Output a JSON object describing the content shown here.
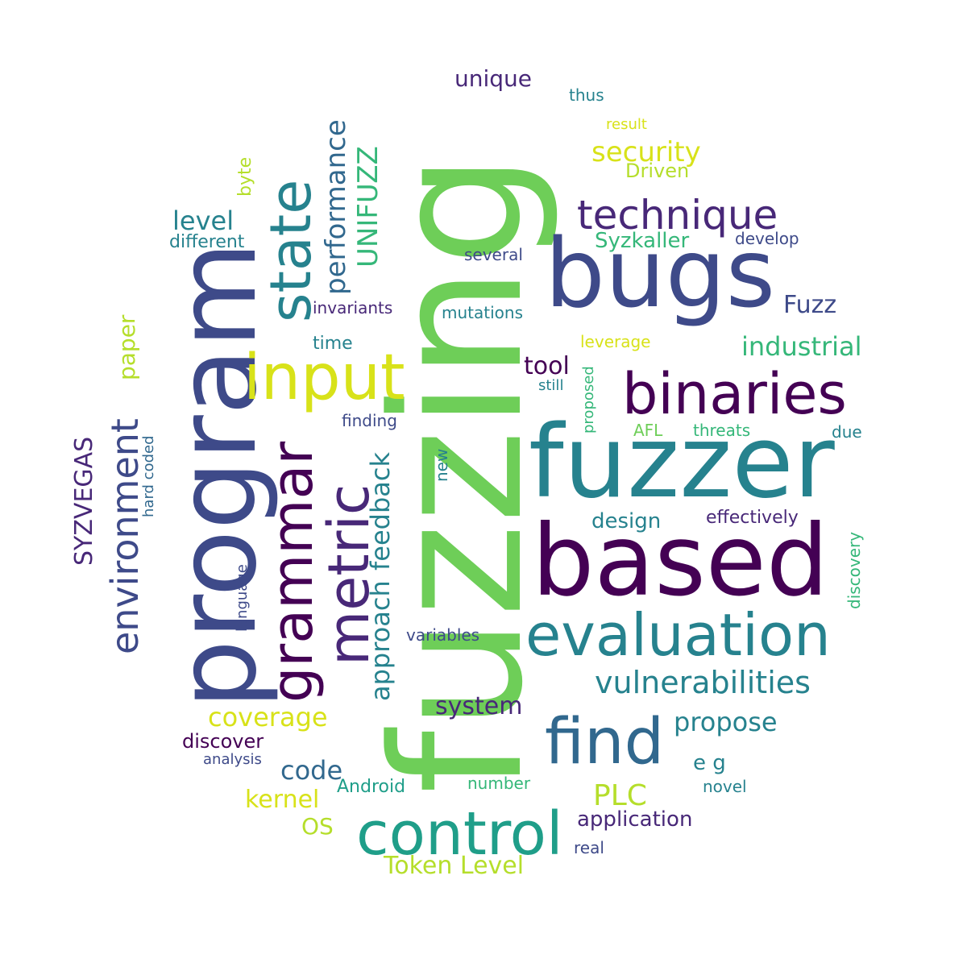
{
  "colors": {
    "dark_purple": "#440154",
    "purple": "#482878",
    "indigo": "#3e4a89",
    "blue": "#31688e",
    "teal": "#26828e",
    "cyan_green": "#1f9e89",
    "green": "#35b779",
    "light_green": "#6ece58",
    "lime": "#b5de2b",
    "yellow": "#d8e219"
  },
  "words": {
    "fuzzing": "fuzzing",
    "fuzzer": "fuzzer",
    "based": "based",
    "bugs": "bugs",
    "program": "program",
    "binaries": "binaries",
    "evaluation": "evaluation",
    "input": "input",
    "state": "state",
    "find": "find",
    "control": "control",
    "grammar": "grammar",
    "metric": "metric",
    "technique": "technique",
    "environment": "environment",
    "vulnerabilities": "vulnerabilities",
    "coverage": "coverage",
    "performance": "performance",
    "UNIFUZZ": "UNIFUZZ",
    "security": "security",
    "feedback": "feedback",
    "approach": "approach",
    "industrial": "industrial",
    "propose": "propose",
    "system": "system",
    "code": "code",
    "kernel": "kernel",
    "Token_Level": "Token Level",
    "PLC": "PLC",
    "unique": "unique",
    "level": "level",
    "tool": "tool",
    "Fuzz": "Fuzz",
    "Syzkaller": "Syzkaller",
    "SYZVEGAS": "SYZVEGAS",
    "application": "application",
    "design": "design",
    "discover": "discover",
    "Driven": "Driven",
    "paper": "paper",
    "effectively": "effectively",
    "e_g": "e g",
    "OS": "OS",
    "Android": "Android",
    "different": "different",
    "time": "time",
    "invariants": "invariants",
    "mutations": "mutations",
    "finding": "finding",
    "threats": "threats",
    "develop": "develop",
    "several": "several",
    "leverage": "leverage",
    "thus": "thus",
    "result": "result",
    "byte": "byte",
    "number": "number",
    "novel": "novel",
    "real": "real",
    "variables": "variables",
    "analysis": "analysis",
    "discovery": "discovery",
    "proposed": "proposed",
    "hard_coded": "hard coded",
    "language": "language",
    "new": "new",
    "still": "still",
    "AFL": "AFL",
    "due": "due"
  }
}
